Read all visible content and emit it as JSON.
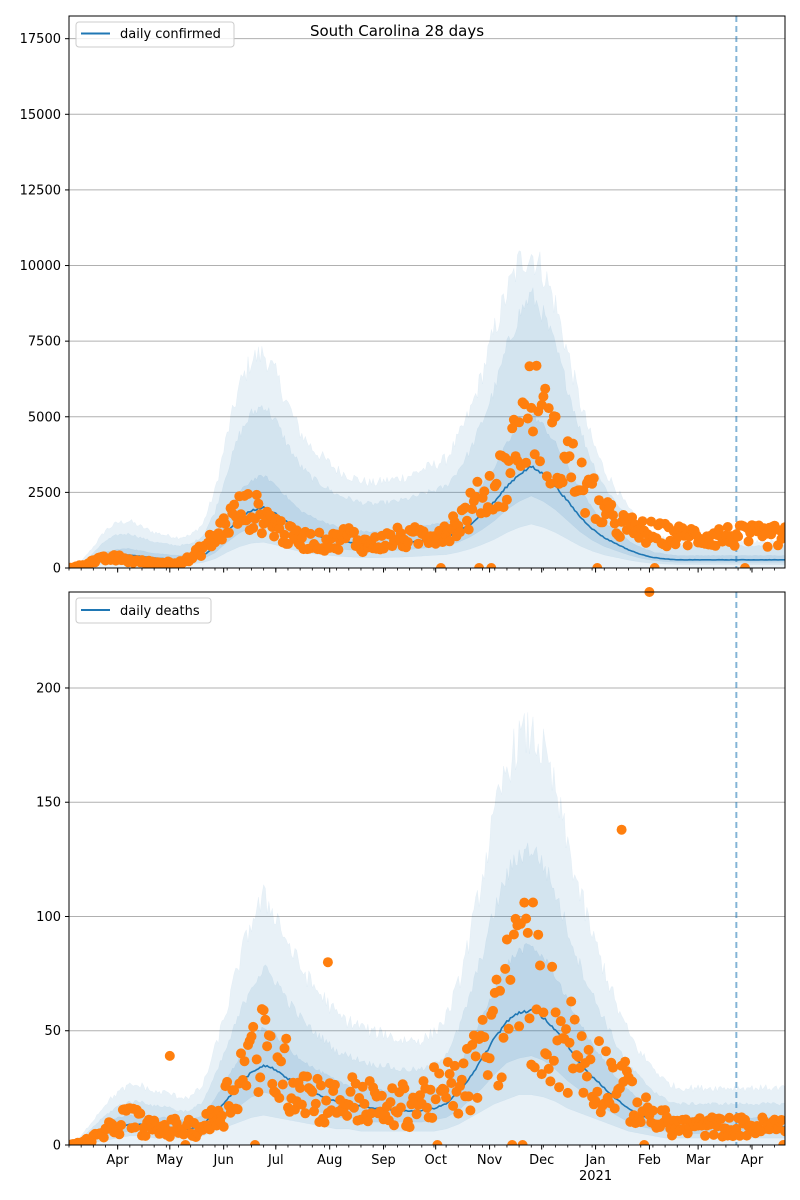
{
  "chart_data": [
    {
      "type": "line",
      "title": "South Carolina 28 days",
      "legend": {
        "entries": [
          "daily confirmed"
        ],
        "placement": "upper-left"
      },
      "xlabel": "",
      "ylabel": "",
      "x_start": "2020-03-04",
      "x_end": "2021-04-20",
      "ylim": [
        0,
        18250
      ],
      "yticks": [
        0,
        2500,
        5000,
        7500,
        10000,
        12500,
        15000,
        17500
      ],
      "ytick_labels": [
        "0",
        "2500",
        "5000",
        "7500",
        "10000",
        "12500",
        "15000",
        "17500"
      ],
      "grid": true,
      "vline_date": "2021-03-23",
      "series_weekly": {
        "week_start": "2020-03-04",
        "median": [
          0,
          60,
          200,
          350,
          420,
          430,
          380,
          330,
          300,
          280,
          300,
          400,
          700,
          1200,
          1650,
          1900,
          2000,
          1800,
          1500,
          1250,
          1100,
          1000,
          900,
          850,
          800,
          780,
          800,
          820,
          850,
          900,
          950,
          1000,
          1200,
          1450,
          1800,
          2200,
          2700,
          3100,
          3350,
          3100,
          2700,
          2200,
          1700,
          1300,
          1000,
          800,
          600,
          450,
          350,
          300,
          270
        ],
        "ci50_low": [
          0,
          40,
          140,
          250,
          300,
          310,
          270,
          230,
          210,
          200,
          220,
          300,
          500,
          850,
          1150,
          1350,
          1400,
          1250,
          1050,
          880,
          780,
          700,
          640,
          600,
          570,
          560,
          570,
          590,
          610,
          650,
          690,
          720,
          850,
          1030,
          1280,
          1570,
          1930,
          2200,
          2380,
          2200,
          1920,
          1560,
          1200,
          920,
          710,
          570,
          430,
          320,
          250,
          210,
          190
        ],
        "ci50_high": [
          0,
          90,
          300,
          520,
          620,
          640,
          560,
          490,
          450,
          420,
          450,
          600,
          1050,
          1800,
          2500,
          2900,
          3050,
          2750,
          2300,
          1900,
          1680,
          1520,
          1370,
          1300,
          1220,
          1190,
          1220,
          1250,
          1300,
          1370,
          1450,
          1520,
          1830,
          2200,
          2750,
          3350,
          4100,
          4700,
          5100,
          4700,
          4100,
          3350,
          2600,
          1980,
          1520,
          1220,
          910,
          690,
          530,
          460,
          410
        ],
        "ci90_low": [
          0,
          20,
          80,
          150,
          180,
          185,
          160,
          140,
          125,
          120,
          130,
          180,
          300,
          520,
          700,
          820,
          850,
          760,
          640,
          540,
          470,
          430,
          390,
          365,
          345,
          340,
          345,
          355,
          370,
          395,
          420,
          440,
          520,
          630,
          780,
          950,
          1170,
          1340,
          1450,
          1340,
          1170,
          950,
          730,
          560,
          430,
          345,
          260,
          195,
          150,
          130,
          115
        ],
        "ci90_high": [
          0,
          150,
          500,
          900,
          1100,
          1130,
          990,
          860,
          790,
          740,
          790,
          1060,
          1850,
          3200,
          4400,
          5100,
          5400,
          4850,
          4050,
          3380,
          2970,
          2700,
          2430,
          2300,
          2160,
          2110,
          2160,
          2210,
          2300,
          2430,
          2560,
          2700,
          3240,
          3900,
          4860,
          5940,
          7290,
          8370,
          9050,
          8370,
          7290,
          5940,
          4590,
          3510,
          2700,
          2160,
          1620,
          1220,
          950,
          810,
          730
        ],
        "ci98_high": [
          0,
          220,
          700,
          1250,
          1500,
          1550,
          1350,
          1180,
          1080,
          1010,
          1080,
          1450,
          2550,
          4400,
          6000,
          6900,
          7100,
          6400,
          5400,
          4500,
          3950,
          3600,
          3250,
          3050,
          2880,
          2800,
          2880,
          2950,
          3050,
          3250,
          3400,
          3600,
          4300,
          5200,
          6450,
          7900,
          9100,
          10100,
          10400,
          9800,
          8700,
          7100,
          5500,
          4200,
          3250,
          2600,
          1950,
          1480,
          1150,
          980,
          880
        ]
      },
      "observed_weekly_mean": [
        0,
        80,
        230,
        300,
        330,
        250,
        200,
        180,
        170,
        200,
        300,
        650,
        1000,
        1500,
        1850,
        1900,
        1700,
        1400,
        1050,
        950,
        900,
        850,
        900,
        1100,
        800,
        780,
        900,
        1000,
        950,
        1100,
        1150,
        1300,
        1500,
        1900,
        2300,
        2800,
        3200,
        4500,
        5300,
        4800,
        3800,
        3500,
        2800,
        2300,
        1700,
        1500,
        1300,
        1200,
        1150,
        1100,
        1050
      ]
    },
    {
      "type": "line",
      "title": "",
      "legend": {
        "entries": [
          "daily deaths"
        ],
        "placement": "upper-left"
      },
      "xlabel": "",
      "ylabel": "",
      "x_start": "2020-03-04",
      "x_end": "2021-04-20",
      "ylim": [
        0,
        242
      ],
      "yticks": [
        0,
        50,
        100,
        150,
        200
      ],
      "ytick_labels": [
        "0",
        "50",
        "100",
        "150",
        "200"
      ],
      "xtick_labels": [
        "Apr",
        "May",
        "Jun",
        "Jul",
        "Aug",
        "Sep",
        "Oct",
        "Nov",
        "Dec",
        "Jan",
        "Feb",
        "Mar",
        "Apr"
      ],
      "xtick_dates": [
        "2020-04-01",
        "2020-05-01",
        "2020-06-01",
        "2020-07-01",
        "2020-08-01",
        "2020-09-01",
        "2020-10-01",
        "2020-11-01",
        "2020-12-01",
        "2021-01-01",
        "2021-02-01",
        "2021-03-01",
        "2021-04-01"
      ],
      "xtick_sublabel_year": "2021",
      "grid": true,
      "vline_date": "2021-03-23",
      "series_weekly": {
        "week_start": "2020-03-04",
        "median": [
          0,
          1,
          3,
          6,
          8,
          9,
          9,
          8,
          8,
          7,
          7,
          9,
          14,
          20,
          26,
          32,
          35,
          33,
          29,
          26,
          23,
          21,
          19,
          18,
          17,
          16,
          16,
          15,
          15,
          15,
          16,
          18,
          23,
          30,
          38,
          47,
          54,
          58,
          59,
          56,
          50,
          43,
          36,
          30,
          25,
          20,
          16,
          13,
          11,
          9,
          8
        ],
        "ci50_low": [
          0,
          0,
          2,
          4,
          5,
          6,
          6,
          5,
          5,
          5,
          5,
          6,
          9,
          13,
          17,
          21,
          23,
          22,
          19,
          17,
          15,
          14,
          12,
          12,
          11,
          10,
          10,
          10,
          10,
          10,
          11,
          12,
          15,
          20,
          25,
          31,
          36,
          38,
          39,
          37,
          33,
          28,
          24,
          20,
          16,
          13,
          10,
          8,
          7,
          6,
          5
        ],
        "ci50_high": [
          0,
          2,
          5,
          9,
          12,
          13,
          13,
          12,
          12,
          11,
          11,
          13,
          20,
          29,
          38,
          47,
          51,
          48,
          42,
          38,
          34,
          31,
          28,
          26,
          25,
          24,
          24,
          23,
          23,
          23,
          24,
          27,
          34,
          44,
          56,
          69,
          79,
          85,
          87,
          82,
          74,
          63,
          53,
          44,
          37,
          29,
          24,
          19,
          16,
          14,
          12
        ],
        "ci90_low": [
          0,
          0,
          1,
          2,
          3,
          4,
          4,
          3,
          3,
          3,
          3,
          4,
          6,
          8,
          10,
          12,
          13,
          12,
          11,
          10,
          9,
          8,
          7,
          7,
          6,
          6,
          6,
          6,
          6,
          6,
          6,
          7,
          9,
          12,
          15,
          18,
          20,
          22,
          22,
          21,
          19,
          16,
          14,
          12,
          10,
          8,
          6,
          5,
          4,
          3,
          3
        ],
        "ci90_high": [
          0,
          3,
          8,
          13,
          17,
          19,
          19,
          17,
          17,
          15,
          15,
          19,
          30,
          43,
          57,
          70,
          77,
          72,
          63,
          56,
          50,
          46,
          41,
          39,
          37,
          35,
          35,
          33,
          33,
          33,
          35,
          40,
          50,
          66,
          84,
          103,
          118,
          127,
          130,
          123,
          110,
          94,
          79,
          66,
          55,
          44,
          35,
          29,
          24,
          20,
          18
        ],
        "ci98_high": [
          0,
          4,
          11,
          18,
          23,
          26,
          26,
          23,
          23,
          21,
          21,
          26,
          42,
          60,
          80,
          98,
          108,
          101,
          88,
          78,
          70,
          64,
          57,
          54,
          52,
          49,
          49,
          46,
          46,
          46,
          49,
          56,
          70,
          92,
          118,
          144,
          165,
          178,
          180,
          172,
          154,
          131,
          110,
          92,
          77,
          61,
          49,
          40,
          34,
          28,
          25
        ]
      },
      "observed_weekly_mean": [
        0,
        1,
        3,
        5,
        10,
        12,
        9,
        7,
        7,
        8,
        7,
        8,
        12,
        20,
        30,
        38,
        40,
        35,
        30,
        28,
        22,
        20,
        18,
        20,
        20,
        18,
        14,
        18,
        17,
        20,
        22,
        24,
        25,
        30,
        38,
        50,
        62,
        70,
        72,
        60,
        50,
        45,
        40,
        35,
        30,
        28,
        22,
        15,
        12,
        10,
        8
      ],
      "notable_points": [
        {
          "date": "2020-05-01",
          "value": 39
        },
        {
          "date": "2020-07-31",
          "value": 80
        },
        {
          "date": "2021-01-16",
          "value": 138
        },
        {
          "date": "2021-02-01",
          "value": 242
        }
      ]
    }
  ],
  "colors": {
    "line": "#1f77b4",
    "points": "#ff7f0e",
    "band": "#1f77b4",
    "grid": "#b0b0b0",
    "vline": "#1f77b4"
  }
}
